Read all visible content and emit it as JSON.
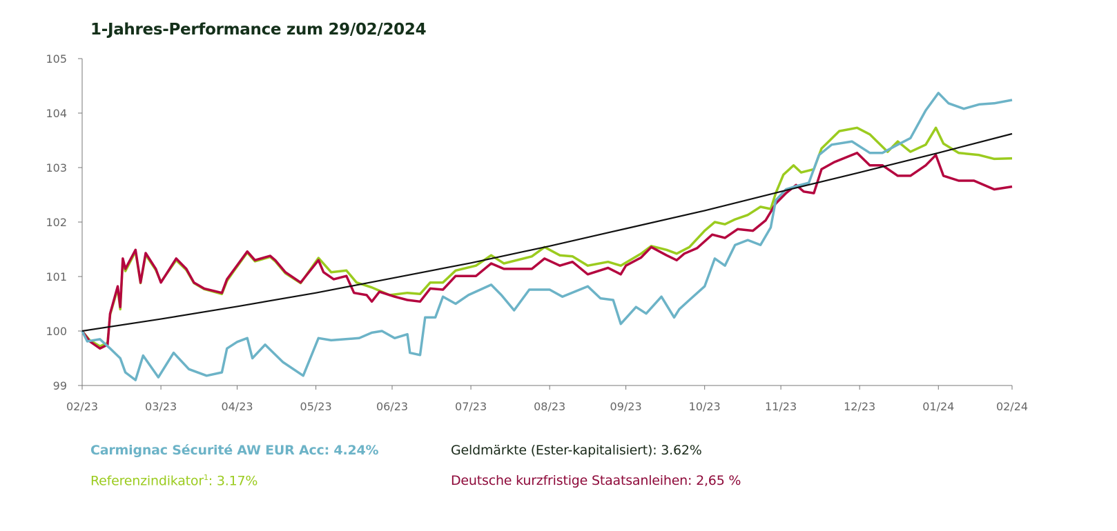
{
  "chart_data": {
    "type": "line",
    "title": "1-Jahres-Performance zum 29/02/2024",
    "xlabel": "",
    "ylabel": "",
    "xlim": [
      "2023-02-28",
      "2024-02-29"
    ],
    "ylim": [
      99,
      105
    ],
    "y_ticks": [
      99,
      100,
      101,
      102,
      103,
      104,
      105
    ],
    "x_ticks": [
      {
        "date": "2023-02-28",
        "label": "02/23"
      },
      {
        "date": "2023-03-31",
        "label": "03/23"
      },
      {
        "date": "2023-04-30",
        "label": "04/23"
      },
      {
        "date": "2023-05-31",
        "label": "05/23"
      },
      {
        "date": "2023-06-30",
        "label": "06/23"
      },
      {
        "date": "2023-07-31",
        "label": "07/23"
      },
      {
        "date": "2023-08-31",
        "label": "08/23"
      },
      {
        "date": "2023-09-30",
        "label": "09/23"
      },
      {
        "date": "2023-10-31",
        "label": "10/23"
      },
      {
        "date": "2023-11-30",
        "label": "11/23"
      },
      {
        "date": "2023-12-31",
        "label": "12/23"
      },
      {
        "date": "2024-01-31",
        "label": "01/24"
      },
      {
        "date": "2024-02-29",
        "label": "02/24"
      }
    ],
    "grid": false,
    "legend_placement": "bottom",
    "series": [
      {
        "name": "Referenzindikator",
        "color": "#9bcb1f",
        "points": [
          [
            "2023-02-28",
            100
          ],
          [
            "2023-03-03",
            99.83
          ],
          [
            "2023-03-07",
            99.72
          ],
          [
            "2023-03-10",
            99.78
          ],
          [
            "2023-03-11",
            100.3
          ],
          [
            "2023-03-14",
            100.78
          ],
          [
            "2023-03-15",
            100.4
          ],
          [
            "2023-03-16",
            101.3
          ],
          [
            "2023-03-17",
            101.1
          ],
          [
            "2023-03-21",
            101.46
          ],
          [
            "2023-03-23",
            100.88
          ],
          [
            "2023-03-25",
            101.4
          ],
          [
            "2023-03-29",
            101.12
          ],
          [
            "2023-03-31",
            100.9
          ],
          [
            "2023-04-06",
            101.3
          ],
          [
            "2023-04-10",
            101.12
          ],
          [
            "2023-04-13",
            100.88
          ],
          [
            "2023-04-17",
            100.77
          ],
          [
            "2023-04-24",
            100.68
          ],
          [
            "2023-04-26",
            100.92
          ],
          [
            "2023-04-29",
            101.12
          ],
          [
            "2023-05-04",
            101.44
          ],
          [
            "2023-05-07",
            101.28
          ],
          [
            "2023-05-13",
            101.36
          ],
          [
            "2023-05-15",
            101.28
          ],
          [
            "2023-05-19",
            101.06
          ],
          [
            "2023-05-25",
            100.88
          ],
          [
            "2023-06-01",
            101.34
          ],
          [
            "2023-06-06",
            101.08
          ],
          [
            "2023-06-12",
            101.11
          ],
          [
            "2023-06-16",
            100.89
          ],
          [
            "2023-06-22",
            100.8
          ],
          [
            "2023-06-29",
            100.66
          ],
          [
            "2023-07-06",
            100.7
          ],
          [
            "2023-07-11",
            100.68
          ],
          [
            "2023-07-15",
            100.89
          ],
          [
            "2023-07-20",
            100.89
          ],
          [
            "2023-07-25",
            101.11
          ],
          [
            "2023-08-02",
            101.2
          ],
          [
            "2023-08-08",
            101.39
          ],
          [
            "2023-08-13",
            101.24
          ],
          [
            "2023-08-24",
            101.37
          ],
          [
            "2023-08-29",
            101.54
          ],
          [
            "2023-09-04",
            101.39
          ],
          [
            "2023-09-09",
            101.37
          ],
          [
            "2023-09-15",
            101.2
          ],
          [
            "2023-09-23",
            101.27
          ],
          [
            "2023-09-28",
            101.2
          ],
          [
            "2023-10-06",
            101.42
          ],
          [
            "2023-10-10",
            101.56
          ],
          [
            "2023-10-16",
            101.49
          ],
          [
            "2023-10-20",
            101.42
          ],
          [
            "2023-10-25",
            101.54
          ],
          [
            "2023-10-31",
            101.84
          ],
          [
            "2023-11-04",
            102.0
          ],
          [
            "2023-11-08",
            101.96
          ],
          [
            "2023-11-12",
            102.05
          ],
          [
            "2023-11-17",
            102.13
          ],
          [
            "2023-11-22",
            102.28
          ],
          [
            "2023-11-26",
            102.24
          ],
          [
            "2023-11-28",
            102.53
          ],
          [
            "2023-12-01",
            102.87
          ],
          [
            "2023-12-05",
            103.04
          ],
          [
            "2023-12-08",
            102.91
          ],
          [
            "2023-12-13",
            102.97
          ],
          [
            "2023-12-16",
            103.35
          ],
          [
            "2023-12-23",
            103.67
          ],
          [
            "2023-12-30",
            103.73
          ],
          [
            "2024-01-04",
            103.61
          ],
          [
            "2024-01-11",
            103.29
          ],
          [
            "2024-01-15",
            103.48
          ],
          [
            "2024-01-20",
            103.29
          ],
          [
            "2024-01-26",
            103.42
          ],
          [
            "2024-01-30",
            103.73
          ],
          [
            "2024-02-02",
            103.44
          ],
          [
            "2024-02-08",
            103.27
          ],
          [
            "2024-02-16",
            103.23
          ],
          [
            "2024-02-22",
            103.16
          ],
          [
            "2024-02-29",
            103.17
          ]
        ]
      },
      {
        "name": "Deutsche kurzfristige Staatsanleihen",
        "color": "#b4063f",
        "points": [
          [
            "2023-02-28",
            100
          ],
          [
            "2023-03-03",
            99.81
          ],
          [
            "2023-03-07",
            99.68
          ],
          [
            "2023-03-10",
            99.75
          ],
          [
            "2023-03-11",
            100.32
          ],
          [
            "2023-03-14",
            100.82
          ],
          [
            "2023-03-15",
            100.44
          ],
          [
            "2023-03-16",
            101.33
          ],
          [
            "2023-03-17",
            101.14
          ],
          [
            "2023-03-21",
            101.49
          ],
          [
            "2023-03-23",
            100.89
          ],
          [
            "2023-03-25",
            101.43
          ],
          [
            "2023-03-29",
            101.14
          ],
          [
            "2023-03-31",
            100.89
          ],
          [
            "2023-04-06",
            101.33
          ],
          [
            "2023-04-10",
            101.14
          ],
          [
            "2023-04-13",
            100.89
          ],
          [
            "2023-04-17",
            100.78
          ],
          [
            "2023-04-24",
            100.7
          ],
          [
            "2023-04-26",
            100.95
          ],
          [
            "2023-04-29",
            101.14
          ],
          [
            "2023-05-04",
            101.46
          ],
          [
            "2023-05-07",
            101.3
          ],
          [
            "2023-05-13",
            101.38
          ],
          [
            "2023-05-15",
            101.3
          ],
          [
            "2023-05-19",
            101.08
          ],
          [
            "2023-05-25",
            100.89
          ],
          [
            "2023-06-01",
            101.3
          ],
          [
            "2023-06-03",
            101.08
          ],
          [
            "2023-06-07",
            100.95
          ],
          [
            "2023-06-12",
            101.01
          ],
          [
            "2023-06-15",
            100.7
          ],
          [
            "2023-06-20",
            100.66
          ],
          [
            "2023-06-22",
            100.54
          ],
          [
            "2023-06-25",
            100.72
          ],
          [
            "2023-07-01",
            100.63
          ],
          [
            "2023-07-06",
            100.57
          ],
          [
            "2023-07-11",
            100.54
          ],
          [
            "2023-07-15",
            100.78
          ],
          [
            "2023-07-20",
            100.76
          ],
          [
            "2023-07-25",
            101.01
          ],
          [
            "2023-08-02",
            101.01
          ],
          [
            "2023-08-08",
            101.24
          ],
          [
            "2023-08-13",
            101.14
          ],
          [
            "2023-08-24",
            101.14
          ],
          [
            "2023-08-29",
            101.33
          ],
          [
            "2023-09-04",
            101.2
          ],
          [
            "2023-09-09",
            101.27
          ],
          [
            "2023-09-15",
            101.04
          ],
          [
            "2023-09-23",
            101.16
          ],
          [
            "2023-09-28",
            101.04
          ],
          [
            "2023-09-30",
            101.2
          ],
          [
            "2023-10-06",
            101.35
          ],
          [
            "2023-10-10",
            101.54
          ],
          [
            "2023-10-16",
            101.39
          ],
          [
            "2023-10-20",
            101.3
          ],
          [
            "2023-10-23",
            101.42
          ],
          [
            "2023-10-28",
            101.52
          ],
          [
            "2023-11-03",
            101.77
          ],
          [
            "2023-11-08",
            101.71
          ],
          [
            "2023-11-13",
            101.87
          ],
          [
            "2023-11-19",
            101.84
          ],
          [
            "2023-11-24",
            102.03
          ],
          [
            "2023-11-28",
            102.34
          ],
          [
            "2023-12-02",
            102.53
          ],
          [
            "2023-12-06",
            102.68
          ],
          [
            "2023-12-09",
            102.56
          ],
          [
            "2023-12-13",
            102.53
          ],
          [
            "2023-12-16",
            102.97
          ],
          [
            "2023-12-21",
            103.1
          ],
          [
            "2023-12-30",
            103.27
          ],
          [
            "2024-01-04",
            103.04
          ],
          [
            "2024-01-09",
            103.04
          ],
          [
            "2024-01-15",
            102.85
          ],
          [
            "2024-01-20",
            102.85
          ],
          [
            "2024-01-26",
            103.04
          ],
          [
            "2024-01-30",
            103.23
          ],
          [
            "2024-02-02",
            102.85
          ],
          [
            "2024-02-08",
            102.76
          ],
          [
            "2024-02-14",
            102.76
          ],
          [
            "2024-02-22",
            102.6
          ],
          [
            "2024-02-29",
            102.65
          ]
        ]
      },
      {
        "name": "Carmignac Sécurité AW EUR Acc",
        "color": "#6cb3c7",
        "points": [
          [
            "2023-02-28",
            100.0
          ],
          [
            "2023-03-02",
            99.81
          ],
          [
            "2023-03-07",
            99.85
          ],
          [
            "2023-03-11",
            99.68
          ],
          [
            "2023-03-15",
            99.5
          ],
          [
            "2023-03-17",
            99.24
          ],
          [
            "2023-03-21",
            99.1
          ],
          [
            "2023-03-24",
            99.55
          ],
          [
            "2023-03-30",
            99.15
          ],
          [
            "2023-04-05",
            99.6
          ],
          [
            "2023-04-11",
            99.3
          ],
          [
            "2023-04-18",
            99.18
          ],
          [
            "2023-04-24",
            99.24
          ],
          [
            "2023-04-26",
            99.68
          ],
          [
            "2023-04-30",
            99.8
          ],
          [
            "2023-05-04",
            99.87
          ],
          [
            "2023-05-06",
            99.5
          ],
          [
            "2023-05-11",
            99.75
          ],
          [
            "2023-05-18",
            99.43
          ],
          [
            "2023-05-26",
            99.18
          ],
          [
            "2023-06-01",
            99.87
          ],
          [
            "2023-06-06",
            99.83
          ],
          [
            "2023-06-17",
            99.87
          ],
          [
            "2023-06-22",
            99.97
          ],
          [
            "2023-06-26",
            100.0
          ],
          [
            "2023-07-01",
            99.87
          ],
          [
            "2023-07-06",
            99.94
          ],
          [
            "2023-07-07",
            99.6
          ],
          [
            "2023-07-11",
            99.56
          ],
          [
            "2023-07-13",
            100.25
          ],
          [
            "2023-07-17",
            100.25
          ],
          [
            "2023-07-20",
            100.63
          ],
          [
            "2023-07-25",
            100.5
          ],
          [
            "2023-07-30",
            100.66
          ],
          [
            "2023-08-08",
            100.85
          ],
          [
            "2023-08-12",
            100.66
          ],
          [
            "2023-08-17",
            100.38
          ],
          [
            "2023-08-23",
            100.76
          ],
          [
            "2023-08-31",
            100.76
          ],
          [
            "2023-09-05",
            100.63
          ],
          [
            "2023-09-15",
            100.82
          ],
          [
            "2023-09-20",
            100.6
          ],
          [
            "2023-09-25",
            100.57
          ],
          [
            "2023-09-28",
            100.13
          ],
          [
            "2023-10-04",
            100.44
          ],
          [
            "2023-10-08",
            100.32
          ],
          [
            "2023-10-14",
            100.63
          ],
          [
            "2023-10-19",
            100.25
          ],
          [
            "2023-10-21",
            100.4
          ],
          [
            "2023-10-25",
            100.57
          ],
          [
            "2023-10-31",
            100.82
          ],
          [
            "2023-11-04",
            101.33
          ],
          [
            "2023-11-08",
            101.2
          ],
          [
            "2023-11-12",
            101.58
          ],
          [
            "2023-11-17",
            101.67
          ],
          [
            "2023-11-22",
            101.58
          ],
          [
            "2023-11-26",
            101.9
          ],
          [
            "2023-11-28",
            102.4
          ],
          [
            "2023-12-02",
            102.6
          ],
          [
            "2023-12-06",
            102.66
          ],
          [
            "2023-12-11",
            102.72
          ],
          [
            "2023-12-15",
            103.23
          ],
          [
            "2023-12-20",
            103.42
          ],
          [
            "2023-12-28",
            103.48
          ],
          [
            "2024-01-04",
            103.27
          ],
          [
            "2024-01-09",
            103.27
          ],
          [
            "2024-01-15",
            103.42
          ],
          [
            "2024-01-20",
            103.54
          ],
          [
            "2024-01-26",
            104.05
          ],
          [
            "2024-01-31",
            104.37
          ],
          [
            "2024-02-04",
            104.18
          ],
          [
            "2024-02-10",
            104.08
          ],
          [
            "2024-02-16",
            104.16
          ],
          [
            "2024-02-22",
            104.18
          ],
          [
            "2024-02-29",
            104.24
          ]
        ]
      },
      {
        "name": "Geldmärkte (Ester-kapitalisiert)",
        "color": "#111111",
        "points": [
          [
            "2023-02-28",
            100
          ],
          [
            "2023-03-31",
            100.22
          ],
          [
            "2023-04-30",
            100.45
          ],
          [
            "2023-05-31",
            100.7
          ],
          [
            "2023-06-30",
            100.97
          ],
          [
            "2023-07-31",
            101.25
          ],
          [
            "2023-08-31",
            101.56
          ],
          [
            "2023-09-30",
            101.88
          ],
          [
            "2023-10-31",
            102.21
          ],
          [
            "2023-11-30",
            102.56
          ],
          [
            "2023-12-31",
            102.91
          ],
          [
            "2024-01-31",
            103.27
          ],
          [
            "2024-02-29",
            103.62
          ]
        ]
      }
    ],
    "legend": [
      {
        "name": "Carmignac Sécurité AW EUR Acc",
        "value": ": 4.24%",
        "footnote": "",
        "color": "#6cb3c7",
        "bold": true
      },
      {
        "name": "Geldmärkte (Ester-kapitalisiert)",
        "value": ": 3.62%",
        "footnote": "",
        "color": "#1a2a1a",
        "bold": false
      },
      {
        "name": "Referenzindikator",
        "value": ": 3.17%",
        "footnote": "1",
        "color": "#9bcb1f",
        "bold": false
      },
      {
        "name": "Deutsche kurzfristige Staatsanleihen",
        "value": ": 2,65 %",
        "footnote": "",
        "color": "#8e0a3a",
        "bold": false
      }
    ]
  }
}
